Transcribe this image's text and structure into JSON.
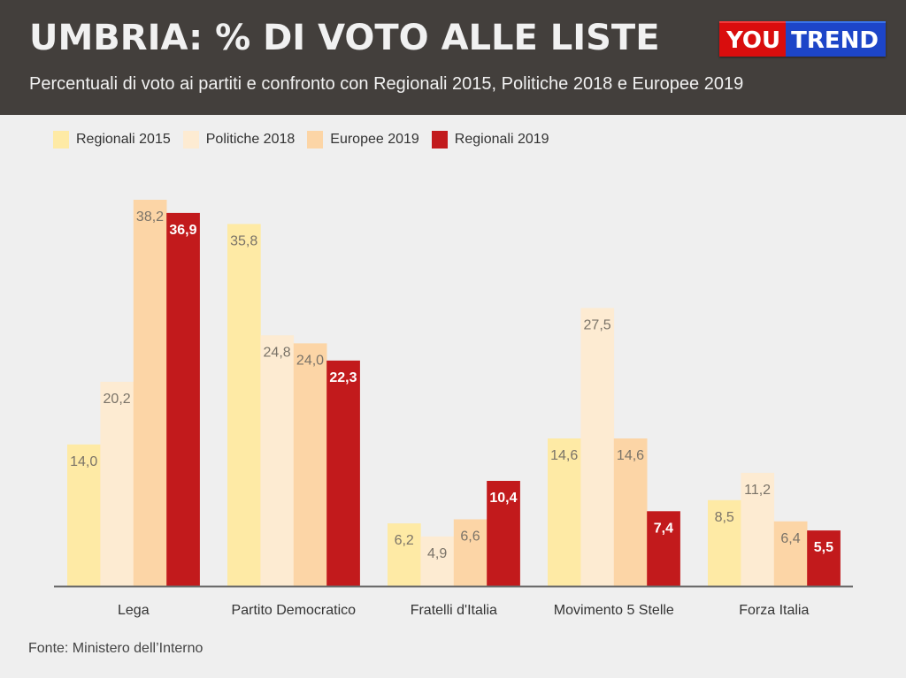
{
  "header": {
    "title": "UMBRIA: % DI VOTO ALLE LISTE",
    "subtitle": "Percentuali di voto ai partiti e confronto con Regionali 2015, Politiche 2018 e Europee 2019",
    "logo": {
      "part1": "YOU",
      "part2": "TREND",
      "color1": "#d90d0d",
      "color2": "#1d45c8"
    }
  },
  "source": "Fonte: Ministero dell’Interno",
  "chart_data": {
    "type": "bar",
    "title": "UMBRIA: % DI VOTO ALLE LISTE",
    "subtitle": "Percentuali di voto ai partiti e confronto con Regionali 2015, Politiche 2018 e Europee 2019",
    "xlabel": "",
    "ylabel": "",
    "ylim": [
      0,
      40
    ],
    "grid": false,
    "legend_position": "top-left",
    "categories": [
      "Lega",
      "Partito Democratico",
      "Fratelli d'Italia",
      "Movimento 5 Stelle",
      "Forza Italia"
    ],
    "series": [
      {
        "name": "Regionali 2015",
        "color": "#feeaa5",
        "label_color": "#7a7368",
        "values": [
          14.0,
          35.8,
          6.2,
          14.6,
          8.5
        ],
        "labels": [
          "14,0",
          "35,8",
          "6,2",
          "14,6",
          "8,5"
        ]
      },
      {
        "name": "Politiche 2018",
        "color": "#fdebd2",
        "label_color": "#7a7368",
        "values": [
          20.2,
          24.8,
          4.9,
          27.5,
          11.2
        ],
        "labels": [
          "20,2",
          "24,8",
          "4,9",
          "27,5",
          "11,2"
        ]
      },
      {
        "name": "Europee 2019",
        "color": "#fcd5a6",
        "label_color": "#7a7368",
        "values": [
          38.2,
          24.0,
          6.6,
          14.6,
          6.4
        ],
        "labels": [
          "38,2",
          "24,0",
          "6,6",
          "14,6",
          "6,4"
        ]
      },
      {
        "name": "Regionali 2019",
        "color": "#c21a1c",
        "label_color": "#ffffff",
        "values": [
          36.9,
          22.3,
          10.4,
          7.4,
          5.5
        ],
        "labels": [
          "36,9",
          "22,3",
          "10,4",
          "7,4",
          "5,5"
        ]
      }
    ]
  }
}
